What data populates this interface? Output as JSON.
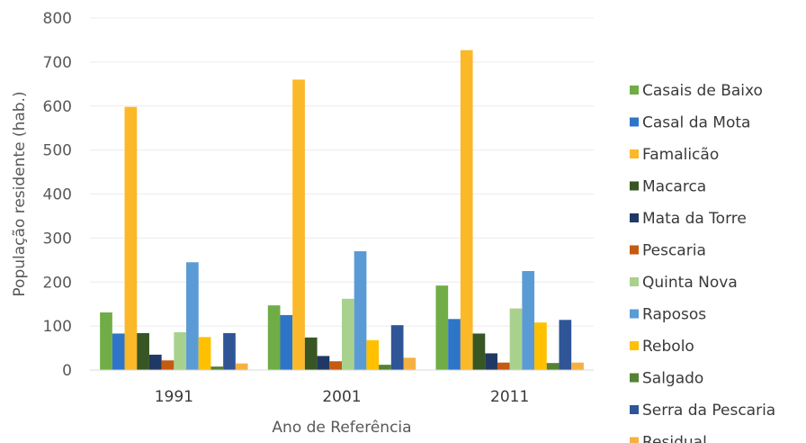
{
  "chart_data": {
    "type": "bar",
    "xlabel": "Ano de Referência",
    "ylabel": "População residente (hab.)",
    "ylim": [
      0,
      800
    ],
    "yticks": [
      0,
      100,
      200,
      300,
      400,
      500,
      600,
      700,
      800
    ],
    "grid": true,
    "legend_position": "right",
    "categories": [
      "1991",
      "2001",
      "2011"
    ],
    "series": [
      {
        "name": "Casais de Baixo",
        "color": "#70ad47",
        "values": [
          131,
          147,
          192
        ]
      },
      {
        "name": "Casal da Mota",
        "color": "#2e75c8",
        "values": [
          83,
          125,
          116
        ]
      },
      {
        "name": "Famalicão",
        "color": "#fbb829",
        "values": [
          598,
          660,
          727
        ]
      },
      {
        "name": "Macarca",
        "color": "#375623",
        "values": [
          84,
          74,
          83
        ]
      },
      {
        "name": "Mata da Torre",
        "color": "#203864",
        "values": [
          35,
          32,
          38
        ]
      },
      {
        "name": "Pescaria",
        "color": "#c55a11",
        "values": [
          22,
          20,
          17
        ]
      },
      {
        "name": "Quinta Nova",
        "color": "#a9d18e",
        "values": [
          86,
          162,
          140
        ]
      },
      {
        "name": "Raposos",
        "color": "#5b9bd5",
        "values": [
          245,
          270,
          225
        ]
      },
      {
        "name": "Rebolo",
        "color": "#ffc000",
        "values": [
          75,
          68,
          108
        ]
      },
      {
        "name": "Salgado",
        "color": "#548235",
        "values": [
          8,
          12,
          16
        ]
      },
      {
        "name": "Serra da Pescaria",
        "color": "#2f5597",
        "values": [
          84,
          102,
          114
        ]
      },
      {
        "name": "Residual",
        "color": "#f4b142",
        "values": [
          15,
          28,
          17
        ]
      }
    ]
  }
}
